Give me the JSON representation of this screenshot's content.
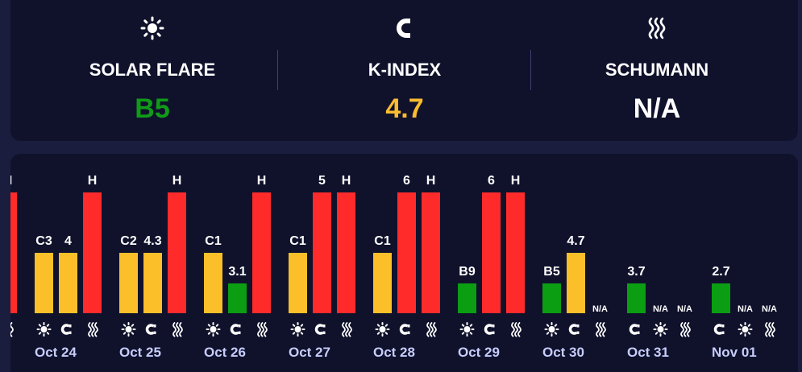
{
  "header": {
    "metrics": [
      {
        "label": "SOLAR FLARE",
        "value": "B5",
        "icon": "sun-icon",
        "color": "#109b18"
      },
      {
        "label": "K-INDEX",
        "value": "4.7",
        "icon": "magnet-icon",
        "color": "#fbbc2f"
      },
      {
        "label": "SCHUMANN",
        "value": "N/A",
        "icon": "waves-icon",
        "color": "#ffffff"
      }
    ]
  },
  "colors": {
    "green": "#0b9d12",
    "yellow": "#fbbf2a",
    "red": "#ff2b2b",
    "date": "#c7cdfa"
  },
  "chart_data": {
    "type": "bar",
    "categories": [
      "Oct 24",
      "Oct 25",
      "Oct 26",
      "Oct 27",
      "Oct 28",
      "Oct 29",
      "Oct 30",
      "Oct 31",
      "Nov 01"
    ],
    "leading_partial": {
      "label": "H",
      "level": 3,
      "color": "red",
      "icon": "waves-icon"
    },
    "days": [
      {
        "date": "Oct 24",
        "bars": [
          {
            "metric": "solar",
            "icon": "sun-icon",
            "label": "C3",
            "level": 1,
            "color": "yellow"
          },
          {
            "metric": "kindex",
            "icon": "magnet-icon",
            "label": "4",
            "level": 1,
            "color": "yellow"
          },
          {
            "metric": "schumann",
            "icon": "waves-icon",
            "label": "H",
            "level": 3,
            "color": "red"
          }
        ]
      },
      {
        "date": "Oct 25",
        "bars": [
          {
            "metric": "solar",
            "icon": "sun-icon",
            "label": "C2",
            "level": 1,
            "color": "yellow"
          },
          {
            "metric": "kindex",
            "icon": "magnet-icon",
            "label": "4.3",
            "level": 1,
            "color": "yellow"
          },
          {
            "metric": "schumann",
            "icon": "waves-icon",
            "label": "H",
            "level": 3,
            "color": "red"
          }
        ]
      },
      {
        "date": "Oct 26",
        "bars": [
          {
            "metric": "solar",
            "icon": "sun-icon",
            "label": "C1",
            "level": 1,
            "color": "yellow"
          },
          {
            "metric": "kindex",
            "icon": "magnet-icon",
            "label": "3.1",
            "level": 0.5,
            "color": "green"
          },
          {
            "metric": "schumann",
            "icon": "waves-icon",
            "label": "H",
            "level": 3,
            "color": "red"
          }
        ]
      },
      {
        "date": "Oct 27",
        "bars": [
          {
            "metric": "solar",
            "icon": "sun-icon",
            "label": "C1",
            "level": 1,
            "color": "yellow"
          },
          {
            "metric": "kindex",
            "icon": "magnet-icon",
            "label": "5",
            "level": 3,
            "color": "red"
          },
          {
            "metric": "schumann",
            "icon": "waves-icon",
            "label": "H",
            "level": 3,
            "color": "red"
          }
        ]
      },
      {
        "date": "Oct 28",
        "bars": [
          {
            "metric": "solar",
            "icon": "sun-icon",
            "label": "C1",
            "level": 1,
            "color": "yellow"
          },
          {
            "metric": "kindex",
            "icon": "magnet-icon",
            "label": "6",
            "level": 3,
            "color": "red"
          },
          {
            "metric": "schumann",
            "icon": "waves-icon",
            "label": "H",
            "level": 3,
            "color": "red"
          }
        ]
      },
      {
        "date": "Oct 29",
        "bars": [
          {
            "metric": "solar",
            "icon": "sun-icon",
            "label": "B9",
            "level": 0.5,
            "color": "green"
          },
          {
            "metric": "kindex",
            "icon": "magnet-icon",
            "label": "6",
            "level": 3,
            "color": "red"
          },
          {
            "metric": "schumann",
            "icon": "waves-icon",
            "label": "H",
            "level": 3,
            "color": "red"
          }
        ]
      },
      {
        "date": "Oct 30",
        "bars": [
          {
            "metric": "solar",
            "icon": "sun-icon",
            "label": "B5",
            "level": 0.5,
            "color": "green"
          },
          {
            "metric": "kindex",
            "icon": "magnet-icon",
            "label": "4.7",
            "level": 1,
            "color": "yellow"
          },
          {
            "metric": "schumann",
            "icon": "waves-icon",
            "label": "N/A",
            "level": 0,
            "color": null
          }
        ]
      },
      {
        "date": "Oct 31",
        "bars": [
          {
            "metric": "kindex",
            "icon": "magnet-icon",
            "label": "3.7",
            "level": 0.5,
            "color": "green"
          },
          {
            "metric": "solar",
            "icon": "sun-icon",
            "label": "N/A",
            "level": 0,
            "color": null
          },
          {
            "metric": "schumann",
            "icon": "waves-icon",
            "label": "N/A",
            "level": 0,
            "color": null
          }
        ]
      },
      {
        "date": "Nov 01",
        "bars": [
          {
            "metric": "kindex",
            "icon": "magnet-icon",
            "label": "2.7",
            "level": 0.5,
            "color": "green"
          },
          {
            "metric": "solar",
            "icon": "sun-icon",
            "label": "N/A",
            "level": 0,
            "color": null
          },
          {
            "metric": "schumann",
            "icon": "waves-icon",
            "label": "N/A",
            "level": 0,
            "color": null
          }
        ]
      }
    ]
  }
}
